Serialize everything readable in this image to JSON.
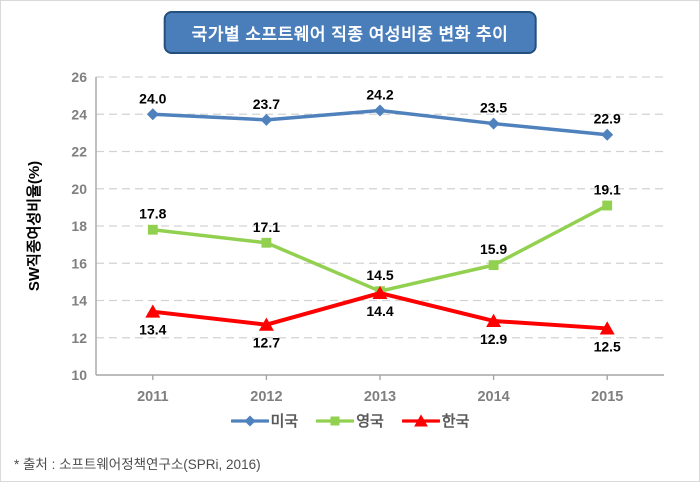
{
  "title": "국가별 소프트웨어 직종 여성비중 변화 추이",
  "footer": "* 출처 : 소프트웨어정책연구소(SPRi, 2016)",
  "colors": {
    "title_fill": "#4a7ebb",
    "title_border": "#24507e",
    "gridline": "#d3d3d3",
    "axis": "#a6a6a6",
    "tick_label": "#7f7f7f",
    "data_label": "#000000",
    "legend_text": "#595959"
  },
  "chart_data": {
    "type": "line",
    "title": "국가별 소프트웨어 직종 여성비중 변화 추이",
    "categories": [
      "2011",
      "2012",
      "2013",
      "2014",
      "2015"
    ],
    "series": [
      {
        "id": "usa",
        "name": "미국",
        "values": [
          24.0,
          23.7,
          24.2,
          23.5,
          22.9
        ],
        "color": "#4f81bd",
        "marker": "diamond",
        "label_position": "above"
      },
      {
        "id": "uk",
        "name": "영국",
        "values": [
          17.8,
          17.1,
          14.5,
          15.9,
          19.1
        ],
        "color": "#92d050",
        "marker": "square",
        "label_position": "above"
      },
      {
        "id": "korea",
        "name": "한국",
        "values": [
          13.4,
          12.7,
          14.4,
          12.9,
          12.5
        ],
        "color": "#ff0000",
        "marker": "triangle",
        "label_position": "below"
      }
    ],
    "xlabel": "",
    "ylabel": "SW직종여성비율(%)",
    "ylim": [
      10,
      26
    ],
    "ytick_step": 2,
    "grid": true,
    "grid_style": "dashed",
    "legend_position": "bottom",
    "data_labels_decimals": 1
  }
}
